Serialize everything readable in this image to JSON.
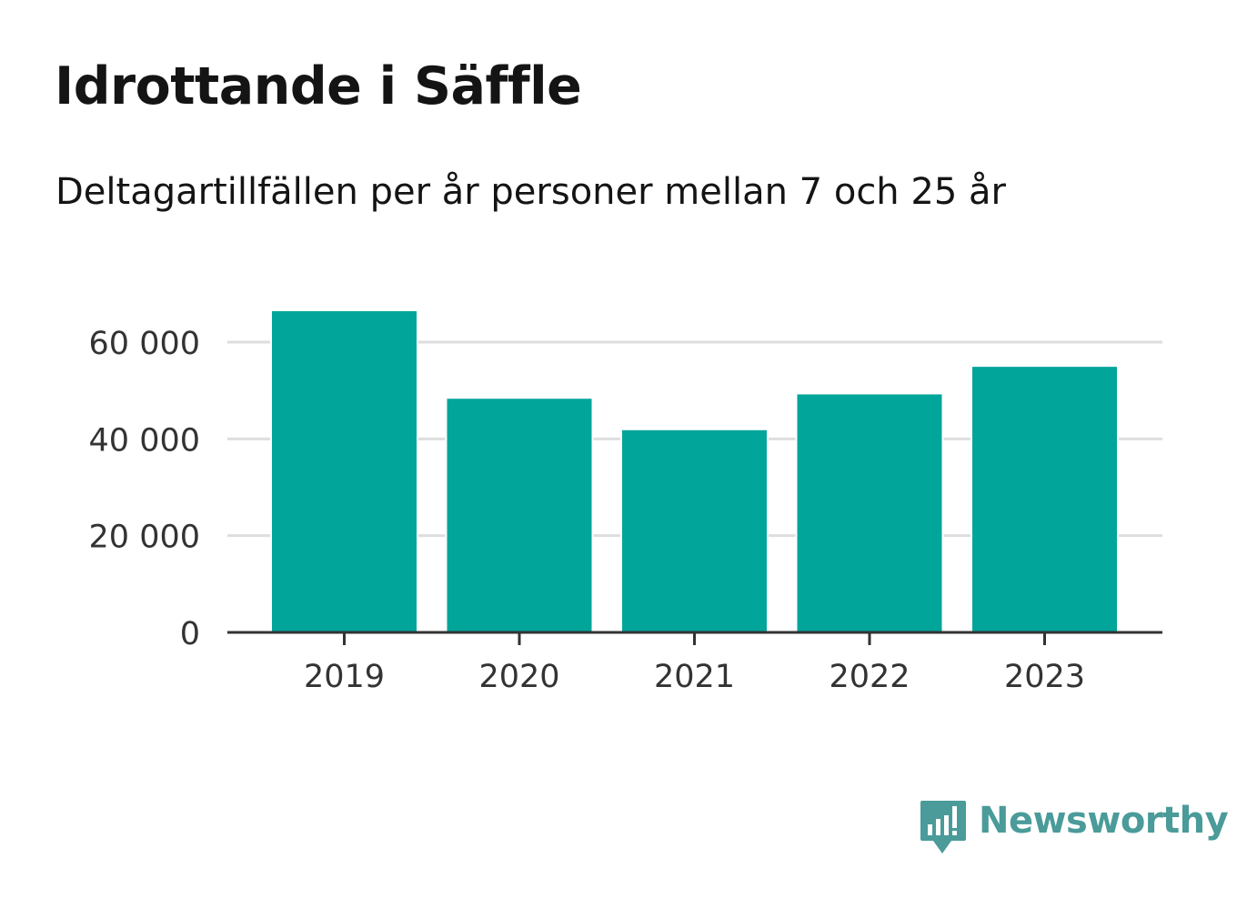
{
  "chart_data": {
    "type": "bar",
    "title": "Idrottande i Säffle",
    "subtitle": "Deltagartillfällen per år personer mellan 7 och 25 år",
    "categories": [
      "2019",
      "2020",
      "2021",
      "2022",
      "2023"
    ],
    "values": [
      66400,
      48300,
      41800,
      49200,
      54900
    ],
    "xlabel": "",
    "ylabel": "",
    "ylim": [
      0,
      66400
    ],
    "yticks": [
      0,
      20000,
      40000,
      60000
    ],
    "ytick_labels": [
      "0",
      "20 000",
      "40 000",
      "60 000"
    ],
    "grid": true,
    "legend": "none",
    "bar_color": "#02a59a"
  },
  "brand": {
    "name": "Newsworthy",
    "color": "#4a9b99",
    "icon": "bar-chart-speech-bubble-icon"
  }
}
